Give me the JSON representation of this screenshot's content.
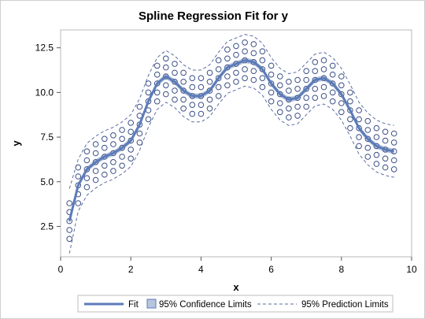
{
  "chart_data": {
    "type": "scatter",
    "title": "Spline Regression Fit for y",
    "xlabel": "x",
    "ylabel": "y",
    "xlim": [
      0,
      10
    ],
    "ylim": [
      0.8,
      13.5
    ],
    "x_ticks": [
      "0",
      "2",
      "4",
      "6",
      "8",
      "10"
    ],
    "x_tick_values": [
      0,
      2,
      4,
      6,
      8,
      10
    ],
    "y_ticks": [
      "2.5",
      "5.0",
      "7.5",
      "10.0",
      "12.5"
    ],
    "y_tick_values": [
      2.5,
      5.0,
      7.5,
      10.0,
      12.5
    ],
    "grid": false,
    "legend_placement": "bottom",
    "colors": {
      "fit": "#5b7bb8",
      "confidence_fill": "#b7c6df",
      "prediction": "#5a6ea3",
      "marker": "#3b4f87"
    },
    "fit": {
      "name": "Fit",
      "x": [
        0.25,
        0.5,
        0.75,
        1.0,
        1.25,
        1.5,
        1.75,
        2.0,
        2.25,
        2.5,
        2.75,
        3.0,
        3.25,
        3.5,
        3.75,
        4.0,
        4.25,
        4.5,
        4.75,
        5.0,
        5.25,
        5.5,
        5.75,
        6.0,
        6.25,
        6.5,
        6.75,
        7.0,
        7.25,
        7.5,
        7.75,
        8.0,
        8.25,
        8.5,
        8.75,
        9.0,
        9.25,
        9.5
      ],
      "y": [
        2.8,
        4.8,
        5.7,
        6.1,
        6.4,
        6.6,
        6.9,
        7.3,
        8.2,
        9.5,
        10.5,
        10.9,
        10.6,
        10.1,
        9.8,
        9.8,
        10.1,
        10.8,
        11.4,
        11.6,
        11.8,
        11.7,
        11.3,
        10.5,
        9.9,
        9.6,
        9.7,
        10.2,
        10.7,
        10.8,
        10.5,
        9.9,
        9.0,
        8.0,
        7.4,
        7.0,
        6.8,
        6.7
      ]
    },
    "confidence_limits": {
      "name": "95% Confidence Limits",
      "half_width": 0.15
    },
    "prediction_limits": {
      "name": "95% Prediction Limits",
      "half_width": 1.45
    },
    "observations": {
      "x_start": 0.25,
      "x_end": 9.5,
      "count": 38,
      "offsets": [
        -1.0,
        -0.5,
        0.0,
        0.5,
        1.0
      ]
    }
  }
}
